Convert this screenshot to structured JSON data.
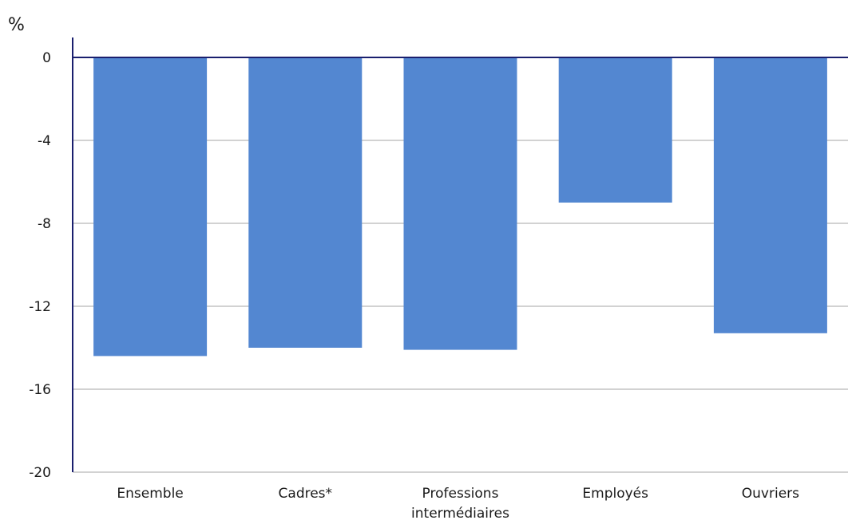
{
  "chart_data": {
    "type": "bar",
    "y_unit": "%",
    "categories": [
      [
        "Ensemble"
      ],
      [
        "Cadres*"
      ],
      [
        "Professions",
        "intermédiaires"
      ],
      [
        "Employés"
      ],
      [
        "Ouvriers"
      ]
    ],
    "values": [
      -14.4,
      -14.0,
      -14.1,
      -7.0,
      -13.3
    ],
    "ylim": [
      -20,
      0
    ],
    "yticks": [
      0,
      -4,
      -8,
      -12,
      -16,
      -20
    ],
    "grid": true,
    "bar_color": "#5387d1",
    "axis_color": "#1a1f6e",
    "grid_color": "#a6a6a6"
  }
}
